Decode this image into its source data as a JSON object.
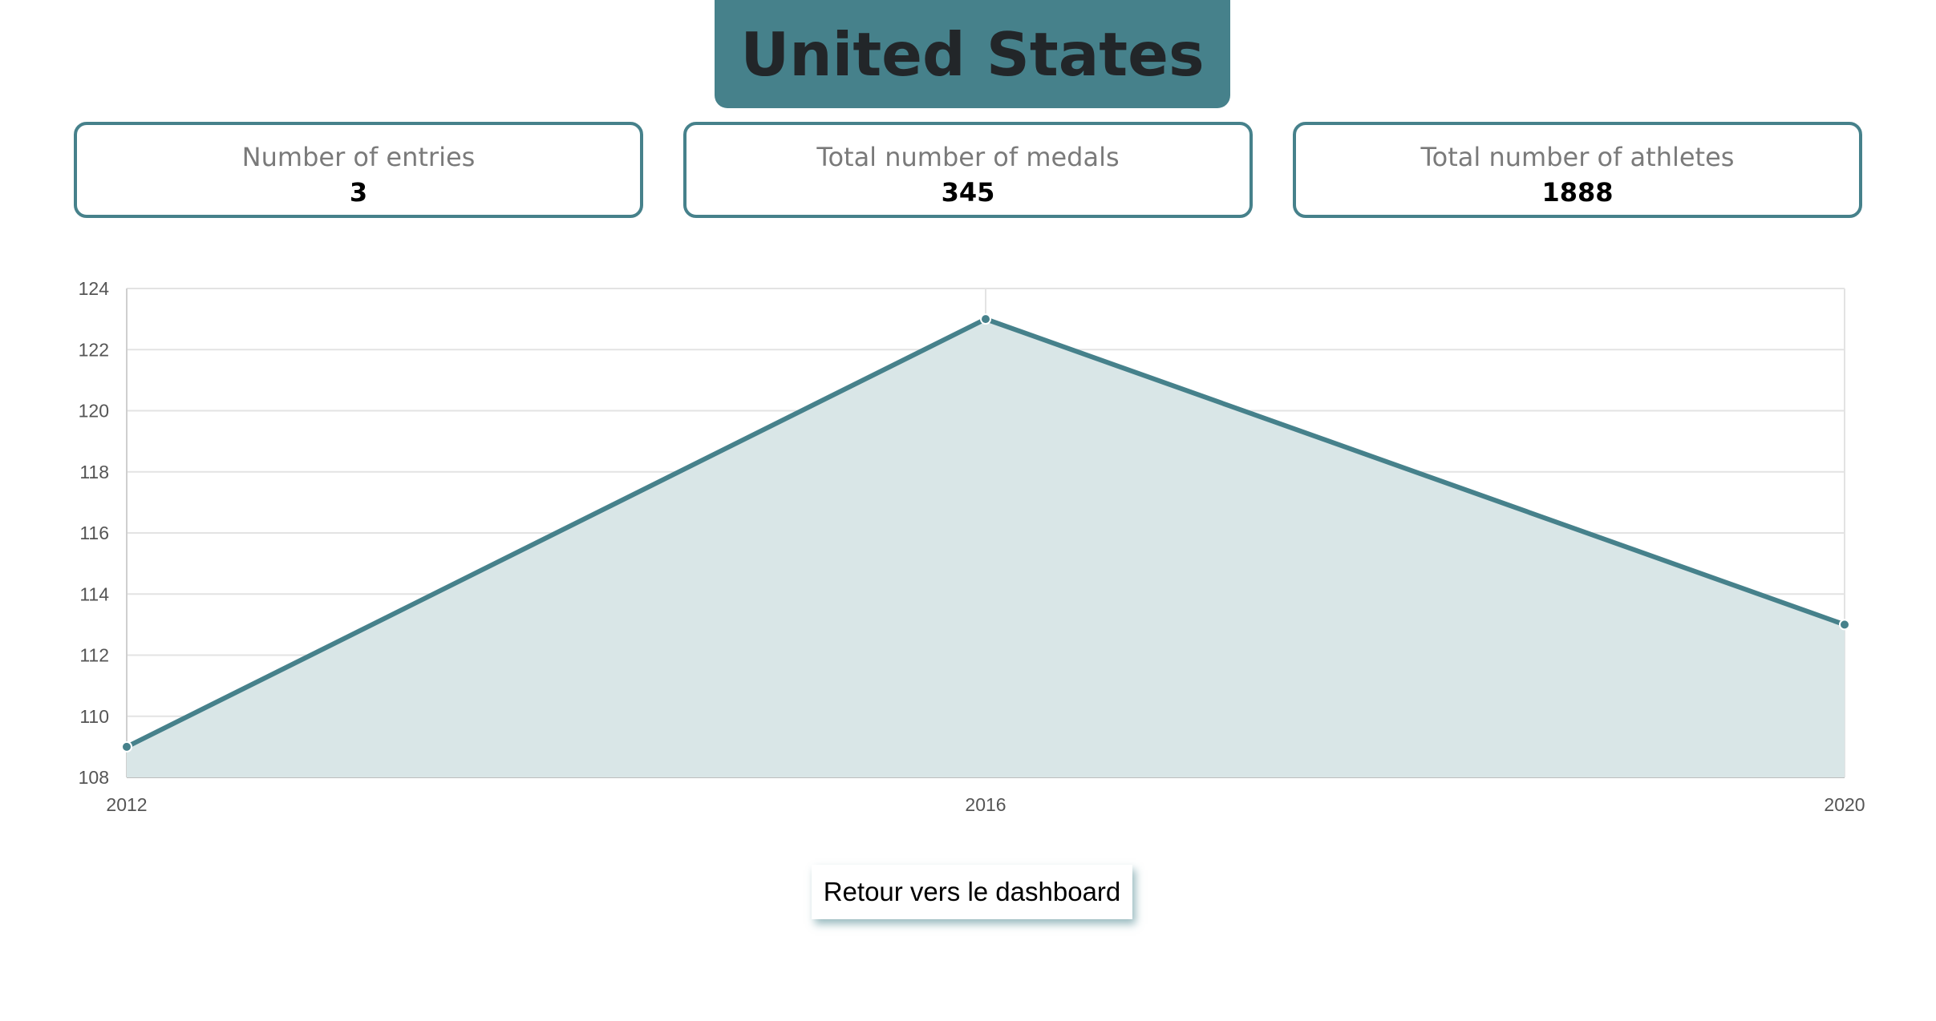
{
  "header": {
    "country": "United States"
  },
  "stats": [
    {
      "label": "Number of entries",
      "value": "3"
    },
    {
      "label": "Total number of medals",
      "value": "345"
    },
    {
      "label": "Total number of athletes",
      "value": "1888"
    }
  ],
  "colors": {
    "accent": "#46818b",
    "fill": "#d9e6e7",
    "grid": "#e3e3e3",
    "tick_text": "#555555"
  },
  "chart_data": {
    "type": "area",
    "x": [
      "2012",
      "2016",
      "2020"
    ],
    "series": [
      {
        "values": [
          109,
          123,
          113
        ]
      }
    ],
    "ylim": [
      108,
      124
    ],
    "yticks": [
      108,
      110,
      112,
      114,
      116,
      118,
      120,
      122,
      124
    ],
    "title": "",
    "xlabel": "",
    "ylabel": "",
    "grid": true,
    "legend": "none"
  },
  "actions": {
    "back_label": "Retour vers le dashboard"
  }
}
